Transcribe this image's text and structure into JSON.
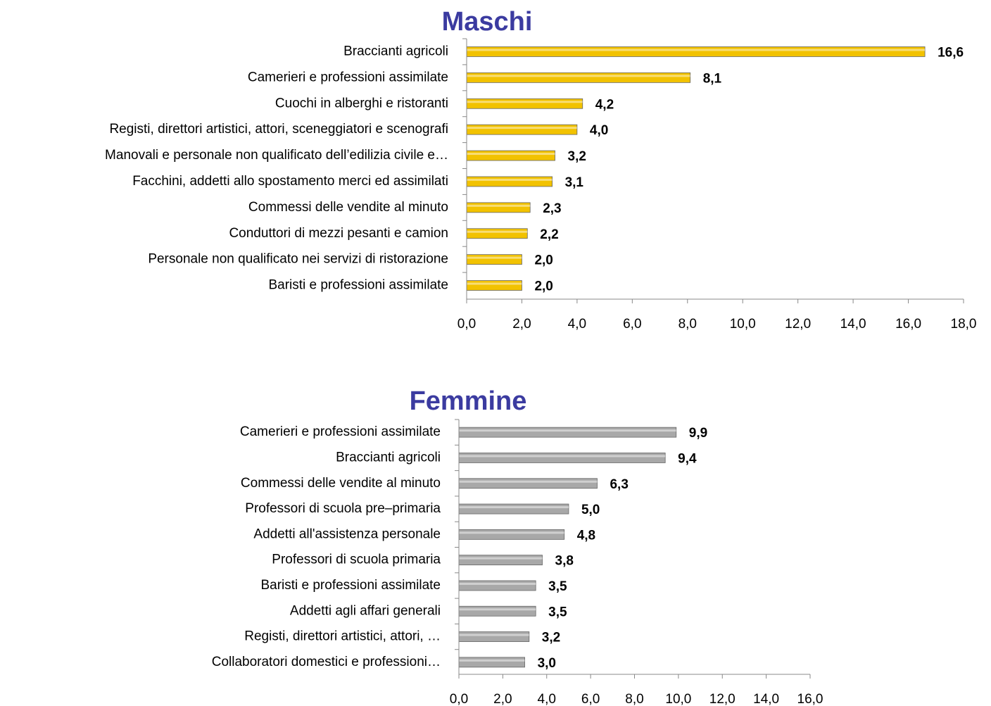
{
  "chart_data": [
    {
      "type": "bar",
      "orientation": "horizontal",
      "title": "Maschi",
      "color": "#f2c200",
      "categories": [
        "Braccianti agricoli",
        "Camerieri e professioni assimilate",
        "Cuochi in alberghi e ristoranti",
        "Registi, direttori artistici, attori, sceneggiatori e scenografi",
        "Manovali e personale non qualificato dell’edilizia civile e…",
        "Facchini, addetti allo spostamento merci ed assimilati",
        "Commessi delle vendite al minuto",
        "Conduttori di mezzi pesanti e camion",
        "Personale non qualificato nei servizi di ristorazione",
        "Baristi e professioni assimilate"
      ],
      "values": [
        16.6,
        8.1,
        4.2,
        4.0,
        3.2,
        3.1,
        2.3,
        2.2,
        2.0,
        2.0
      ],
      "value_labels": [
        "16,6",
        "8,1",
        "4,2",
        "4,0",
        "3,2",
        "3,1",
        "2,3",
        "2,2",
        "2,0",
        "2,0"
      ],
      "xlim": [
        0,
        18
      ],
      "xticks": [
        {
          "value": 0,
          "label": "0,0"
        },
        {
          "value": 2,
          "label": "2,0"
        },
        {
          "value": 4,
          "label": "4,0"
        },
        {
          "value": 6,
          "label": "6,0"
        },
        {
          "value": 8,
          "label": "8,0"
        },
        {
          "value": 10,
          "label": "10,0"
        },
        {
          "value": 12,
          "label": "12,0"
        },
        {
          "value": 14,
          "label": "14,0"
        },
        {
          "value": 16,
          "label": "16,0"
        },
        {
          "value": 18,
          "label": "18,0"
        }
      ]
    },
    {
      "type": "bar",
      "orientation": "horizontal",
      "title": "Femmine",
      "color": "#a8a8a8",
      "categories": [
        "Camerieri e professioni assimilate",
        "Braccianti agricoli",
        "Commessi delle vendite al minuto",
        "Professori di scuola pre–primaria",
        "Addetti all'assistenza personale",
        "Professori di scuola primaria",
        "Baristi e professioni assimilate",
        "Addetti agli affari generali",
        "Registi, direttori artistici, attori, …",
        "Collaboratori domestici e professioni…"
      ],
      "values": [
        9.9,
        9.4,
        6.3,
        5.0,
        4.8,
        3.8,
        3.5,
        3.5,
        3.2,
        3.0
      ],
      "value_labels": [
        "9,9",
        "9,4",
        "6,3",
        "5,0",
        "4,8",
        "3,8",
        "3,5",
        "3,5",
        "3,2",
        "3,0"
      ],
      "xlim": [
        0,
        16
      ],
      "xticks": [
        {
          "value": 0,
          "label": "0,0"
        },
        {
          "value": 2,
          "label": "2,0"
        },
        {
          "value": 4,
          "label": "4,0"
        },
        {
          "value": 6,
          "label": "6,0"
        },
        {
          "value": 8,
          "label": "8,0"
        },
        {
          "value": 10,
          "label": "10,0"
        },
        {
          "value": 12,
          "label": "12,0"
        },
        {
          "value": 14,
          "label": "14,0"
        },
        {
          "value": 16,
          "label": "16,0"
        }
      ]
    }
  ]
}
